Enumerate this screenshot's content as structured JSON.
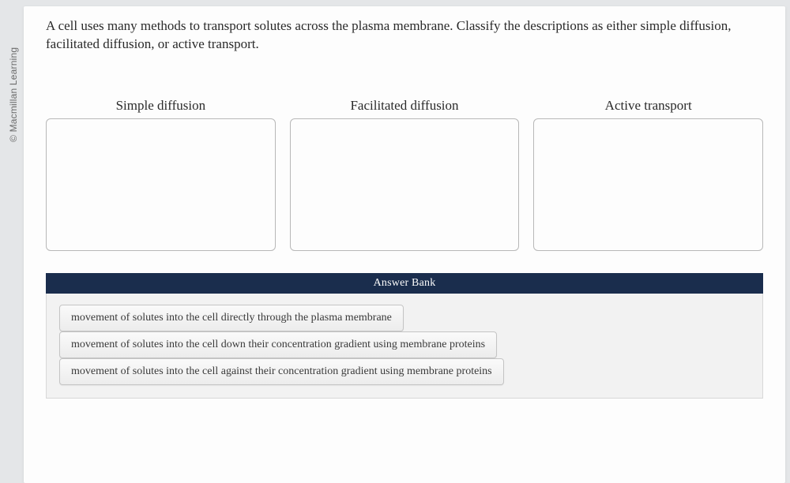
{
  "copyright": "© Macmillan Learning",
  "prompt": "A cell uses many methods to transport solutes across the plasma membrane. Classify the descriptions as either simple diffusion, facilitated diffusion, or active transport.",
  "bins": [
    {
      "title": "Simple diffusion"
    },
    {
      "title": "Facilitated diffusion"
    },
    {
      "title": "Active transport"
    }
  ],
  "answerBank": {
    "header": "Answer Bank",
    "items": [
      "movement of solutes into the cell directly through the plasma membrane",
      "movement of solutes into the cell down their concentration gradient using membrane proteins",
      "movement of solutes into the cell against their concentration gradient using membrane proteins"
    ]
  }
}
